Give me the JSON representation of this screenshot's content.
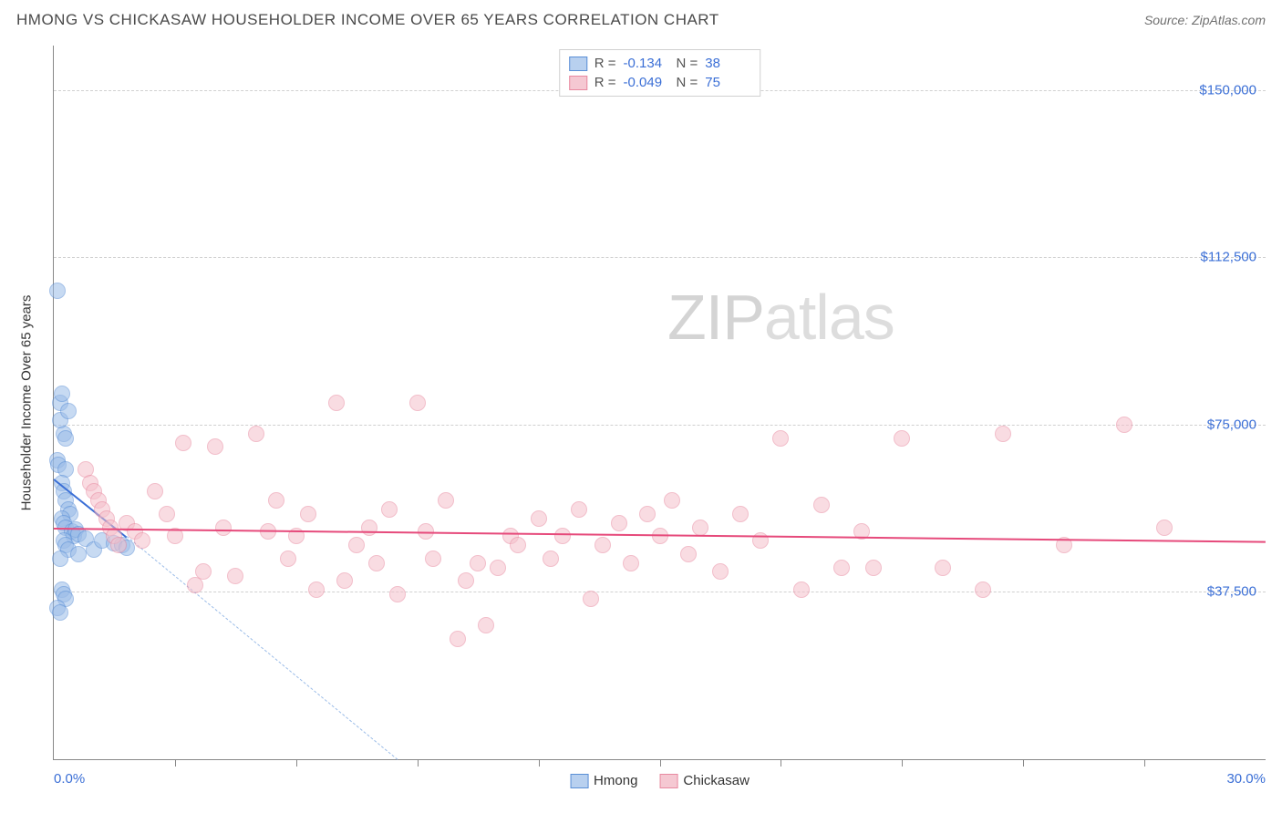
{
  "header": {
    "title": "HMONG VS CHICKASAW HOUSEHOLDER INCOME OVER 65 YEARS CORRELATION CHART",
    "source": "Source: ZipAtlas.com"
  },
  "watermark": {
    "prefix": "ZIP",
    "suffix": "atlas"
  },
  "chart": {
    "type": "scatter",
    "xlim": [
      0,
      30
    ],
    "ylim": [
      0,
      160000
    ],
    "x_min_label": "0.0%",
    "x_max_label": "30.0%",
    "x_ticks": [
      3,
      6,
      9,
      12,
      15,
      18,
      21,
      24,
      27
    ],
    "y_gridlines": [
      {
        "value": 37500,
        "label": "$37,500"
      },
      {
        "value": 75000,
        "label": "$75,000"
      },
      {
        "value": 112500,
        "label": "$112,500"
      },
      {
        "value": 150000,
        "label": "$150,000"
      }
    ],
    "y_axis_label": "Householder Income Over 65 years",
    "background_color": "#ffffff",
    "grid_color": "#d0d0d0",
    "axis_color": "#888888",
    "label_color": "#3b6fd6",
    "marker_radius": 9,
    "series": [
      {
        "name": "Hmong",
        "color_fill": "#9bbce8",
        "color_stroke": "#5a8fd6",
        "R": "-0.134",
        "N": "38",
        "trend": {
          "x1": 0,
          "y1": 63000,
          "x2": 1.8,
          "y2": 50000,
          "solid": true
        },
        "extrap": {
          "x1": 1.8,
          "y1": 50000,
          "x2": 8.5,
          "y2": 0
        },
        "points": [
          [
            0.1,
            105000
          ],
          [
            0.15,
            80000
          ],
          [
            0.2,
            82000
          ],
          [
            0.25,
            73000
          ],
          [
            0.3,
            72000
          ],
          [
            0.15,
            76000
          ],
          [
            0.1,
            67000
          ],
          [
            0.12,
            66000
          ],
          [
            0.3,
            65000
          ],
          [
            0.35,
            78000
          ],
          [
            0.2,
            62000
          ],
          [
            0.25,
            60000
          ],
          [
            0.3,
            58000
          ],
          [
            0.35,
            56000
          ],
          [
            0.4,
            55000
          ],
          [
            0.2,
            54000
          ],
          [
            0.25,
            53000
          ],
          [
            0.3,
            52000
          ],
          [
            0.45,
            51000
          ],
          [
            0.5,
            50000
          ],
          [
            0.25,
            49000
          ],
          [
            0.3,
            48000
          ],
          [
            0.35,
            47000
          ],
          [
            0.6,
            46000
          ],
          [
            0.15,
            45000
          ],
          [
            0.2,
            38000
          ],
          [
            0.25,
            37000
          ],
          [
            0.3,
            36000
          ],
          [
            0.1,
            34000
          ],
          [
            0.15,
            33000
          ],
          [
            0.55,
            51500
          ],
          [
            0.6,
            50500
          ],
          [
            0.8,
            49500
          ],
          [
            1.0,
            47000
          ],
          [
            1.2,
            49000
          ],
          [
            1.5,
            48500
          ],
          [
            1.7,
            48000
          ],
          [
            1.8,
            47500
          ]
        ]
      },
      {
        "name": "Chickasaw",
        "color_fill": "#f5c0cb",
        "color_stroke": "#e889a0",
        "R": "-0.049",
        "N": "75",
        "trend": {
          "x1": 0,
          "y1": 52000,
          "x2": 30,
          "y2": 49000,
          "solid": true
        },
        "points": [
          [
            0.8,
            65000
          ],
          [
            0.9,
            62000
          ],
          [
            1.0,
            60000
          ],
          [
            1.1,
            58000
          ],
          [
            1.2,
            56000
          ],
          [
            1.3,
            54000
          ],
          [
            1.4,
            52000
          ],
          [
            1.5,
            50000
          ],
          [
            1.6,
            48000
          ],
          [
            1.8,
            53000
          ],
          [
            2.0,
            51000
          ],
          [
            2.2,
            49000
          ],
          [
            2.5,
            60000
          ],
          [
            2.8,
            55000
          ],
          [
            3.0,
            50000
          ],
          [
            3.2,
            71000
          ],
          [
            3.5,
            39000
          ],
          [
            3.7,
            42000
          ],
          [
            4.0,
            70000
          ],
          [
            4.2,
            52000
          ],
          [
            4.5,
            41000
          ],
          [
            5.0,
            73000
          ],
          [
            5.3,
            51000
          ],
          [
            5.5,
            58000
          ],
          [
            5.8,
            45000
          ],
          [
            6.0,
            50000
          ],
          [
            6.3,
            55000
          ],
          [
            6.5,
            38000
          ],
          [
            7.0,
            80000
          ],
          [
            7.2,
            40000
          ],
          [
            7.5,
            48000
          ],
          [
            7.8,
            52000
          ],
          [
            8.0,
            44000
          ],
          [
            8.3,
            56000
          ],
          [
            8.5,
            37000
          ],
          [
            9.0,
            80000
          ],
          [
            9.2,
            51000
          ],
          [
            9.4,
            45000
          ],
          [
            9.7,
            58000
          ],
          [
            10.0,
            27000
          ],
          [
            10.2,
            40000
          ],
          [
            10.5,
            44000
          ],
          [
            10.7,
            30000
          ],
          [
            11.0,
            43000
          ],
          [
            11.3,
            50000
          ],
          [
            11.5,
            48000
          ],
          [
            12.0,
            54000
          ],
          [
            12.3,
            45000
          ],
          [
            12.6,
            50000
          ],
          [
            13.0,
            56000
          ],
          [
            13.3,
            36000
          ],
          [
            13.6,
            48000
          ],
          [
            14.0,
            53000
          ],
          [
            14.3,
            44000
          ],
          [
            14.7,
            55000
          ],
          [
            15.0,
            50000
          ],
          [
            15.3,
            58000
          ],
          [
            15.7,
            46000
          ],
          [
            16.0,
            52000
          ],
          [
            16.5,
            42000
          ],
          [
            17.0,
            55000
          ],
          [
            17.5,
            49000
          ],
          [
            18.0,
            72000
          ],
          [
            18.5,
            38000
          ],
          [
            19.0,
            57000
          ],
          [
            19.5,
            43000
          ],
          [
            20.0,
            51000
          ],
          [
            20.3,
            43000
          ],
          [
            21.0,
            72000
          ],
          [
            22.0,
            43000
          ],
          [
            23.0,
            38000
          ],
          [
            23.5,
            73000
          ],
          [
            25.0,
            48000
          ],
          [
            26.5,
            75000
          ],
          [
            27.5,
            52000
          ]
        ]
      }
    ],
    "legend_bottom": [
      {
        "label": "Hmong",
        "swatch": "blue"
      },
      {
        "label": "Chickasaw",
        "swatch": "pink"
      }
    ]
  }
}
